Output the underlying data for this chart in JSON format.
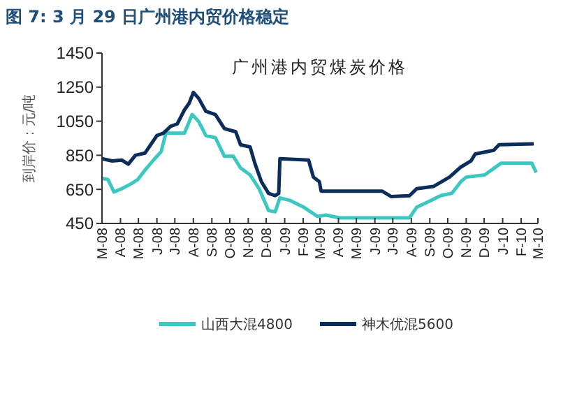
{
  "chart_data": {
    "type": "line",
    "title": "图 7: 3 月 29 日广州港内贸价格稳定",
    "subtitle": "广州港内贸煤炭价格",
    "ylabel": "到岸价：元/吨",
    "xlim": [
      "2008-03-01",
      "2010-03-01"
    ],
    "xticks": [
      {
        "value": "2008-03",
        "label": "M-08"
      },
      {
        "value": "2008-04",
        "label": "A-08"
      },
      {
        "value": "2008-05",
        "label": "M-08"
      },
      {
        "value": "2008-06",
        "label": "J-08"
      },
      {
        "value": "2008-07",
        "label": "J-08"
      },
      {
        "value": "2008-08",
        "label": "A-08"
      },
      {
        "value": "2008-09",
        "label": "S-08"
      },
      {
        "value": "2008-10",
        "label": "O-08"
      },
      {
        "value": "2008-11",
        "label": "N-08"
      },
      {
        "value": "2008-12",
        "label": "D-08"
      },
      {
        "value": "2009-01",
        "label": "J-09"
      },
      {
        "value": "2009-02",
        "label": "F-09"
      },
      {
        "value": "2009-03",
        "label": "M-09"
      },
      {
        "value": "2009-04",
        "label": "A-09"
      },
      {
        "value": "2009-05",
        "label": "M-09"
      },
      {
        "value": "2009-06",
        "label": "J-09"
      },
      {
        "value": "2009-07",
        "label": "J-09"
      },
      {
        "value": "2009-08",
        "label": "A-09"
      },
      {
        "value": "2009-09",
        "label": "S-09"
      },
      {
        "value": "2009-10",
        "label": "O-09"
      },
      {
        "value": "2009-11",
        "label": "N-09"
      },
      {
        "value": "2009-12",
        "label": "D-09"
      },
      {
        "value": "2010-01",
        "label": "J-10"
      },
      {
        "value": "2010-02",
        "label": "F-10"
      },
      {
        "value": "2010-03",
        "label": "M-10"
      }
    ],
    "ylim": [
      450,
      1450
    ],
    "yticks": [
      450,
      650,
      850,
      1050,
      1250,
      1450
    ],
    "grid": false,
    "legend": "bottom",
    "marker": "none",
    "line_style": "solid",
    "series": [
      {
        "name": "山西大混4800",
        "color": "#3cc8c0",
        "x": [
          "2008-03-01",
          "2008-03-11",
          "2008-03-21",
          "2008-04-03",
          "2008-04-18",
          "2008-04-30",
          "2008-05-12",
          "2008-05-27",
          "2008-06-08",
          "2008-06-16",
          "2008-07-17",
          "2008-07-30",
          "2008-08-10",
          "2008-08-22",
          "2008-09-07",
          "2008-09-22",
          "2008-10-07",
          "2008-10-19",
          "2008-11-04",
          "2008-11-19",
          "2008-12-05",
          "2008-12-16",
          "2008-12-24",
          "2009-01-09",
          "2009-02-02",
          "2009-02-25",
          "2009-03-11",
          "2009-04-03",
          "2009-07-29",
          "2009-08-10",
          "2009-08-30",
          "2009-09-19",
          "2009-10-08",
          "2009-10-23",
          "2009-11-01",
          "2009-12-02",
          "2009-12-29",
          "2010-02-19",
          "2010-02-26"
        ],
        "values": [
          714,
          708,
          635,
          654,
          681,
          708,
          763,
          825,
          871,
          980,
          980,
          1089,
          1048,
          966,
          953,
          844,
          844,
          776,
          735,
          654,
          526,
          518,
          600,
          586,
          545,
          491,
          499,
          483,
          483,
          545,
          578,
          613,
          627,
          695,
          722,
          735,
          803,
          803,
          749
        ]
      },
      {
        "name": "神木优混5600",
        "color": "#0b2d5b",
        "x": [
          "2008-03-01",
          "2008-03-18",
          "2008-04-03",
          "2008-04-14",
          "2008-04-26",
          "2008-05-12",
          "2008-06-01",
          "2008-06-12",
          "2008-06-24",
          "2008-07-05",
          "2008-07-17",
          "2008-07-25",
          "2008-08-01",
          "2008-08-10",
          "2008-08-22",
          "2008-09-07",
          "2008-09-22",
          "2008-10-11",
          "2008-10-19",
          "2008-11-04",
          "2008-11-12",
          "2008-11-23",
          "2008-12-05",
          "2008-12-16",
          "2008-12-22",
          "2008-12-24",
          "2009-02-10",
          "2009-02-18",
          "2009-02-28",
          "2009-03-03",
          "2009-06-13",
          "2009-06-28",
          "2009-07-29",
          "2009-08-10",
          "2009-09-07",
          "2009-10-04",
          "2009-10-23",
          "2009-11-09",
          "2009-11-16",
          "2009-12-17",
          "2009-12-26",
          "2010-02-22"
        ],
        "values": [
          830,
          817,
          822,
          798,
          850,
          863,
          966,
          980,
          1020,
          1034,
          1116,
          1156,
          1219,
          1184,
          1108,
          1089,
          1007,
          988,
          912,
          899,
          803,
          695,
          627,
          613,
          627,
          830,
          822,
          722,
          695,
          640,
          640,
          608,
          613,
          654,
          667,
          722,
          781,
          817,
          858,
          879,
          912,
          917
        ]
      }
    ]
  }
}
